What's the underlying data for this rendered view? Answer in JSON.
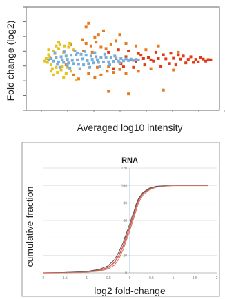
{
  "chart_data": [
    {
      "type": "scatter",
      "title": "",
      "xlabel": "Averaged log10 intensity",
      "ylabel": "Fold change (log2)",
      "xlim": [
        0.4,
        1.95
      ],
      "ylim": [
        -2.0,
        2.1
      ],
      "grid": false,
      "legend": "none",
      "series": [
        {
          "color": "#e23a16",
          "points": [
            [
              1.46,
              0.05
            ],
            [
              1.52,
              0.04
            ],
            [
              1.58,
              0.06
            ],
            [
              1.64,
              0.03
            ],
            [
              1.7,
              0.02
            ],
            [
              1.76,
              0.02
            ],
            [
              1.82,
              0.03
            ],
            [
              1.86,
              0.01
            ],
            [
              1.88,
              0.0
            ],
            [
              1.5,
              0.2
            ],
            [
              1.55,
              -0.15
            ],
            [
              1.62,
              0.18
            ],
            [
              1.68,
              -0.12
            ],
            [
              1.72,
              0.12
            ],
            [
              1.78,
              -0.08
            ],
            [
              1.8,
              0.08
            ],
            [
              1.84,
              -0.05
            ],
            [
              1.44,
              0.3
            ],
            [
              1.48,
              -0.25
            ],
            [
              1.56,
              0.26
            ],
            [
              1.6,
              -0.2
            ],
            [
              1.66,
              0.15
            ],
            [
              1.74,
              -0.1
            ],
            [
              1.42,
              -0.05
            ],
            [
              1.38,
              0.1
            ],
            [
              1.35,
              -0.2
            ],
            [
              1.3,
              0.25
            ],
            [
              1.26,
              -0.3
            ],
            [
              1.22,
              0.35
            ],
            [
              1.18,
              -0.28
            ],
            [
              1.14,
              0.4
            ],
            [
              1.1,
              -0.35
            ],
            [
              1.06,
              0.3
            ],
            [
              1.34,
              0.05
            ],
            [
              1.28,
              -0.08
            ],
            [
              1.2,
              0.12
            ],
            [
              1.16,
              -0.15
            ],
            [
              1.24,
              0.0
            ],
            [
              1.4,
              0.0
            ],
            [
              1.32,
              0.18
            ],
            [
              1.12,
              0.05
            ]
          ]
        },
        {
          "color": "#e67a1e",
          "points": [
            [
              0.88,
              0.65
            ],
            [
              0.92,
              0.55
            ],
            [
              0.96,
              0.7
            ],
            [
              1.0,
              0.5
            ],
            [
              1.04,
              0.45
            ],
            [
              1.08,
              0.6
            ],
            [
              0.9,
              -0.55
            ],
            [
              0.95,
              -0.7
            ],
            [
              1.0,
              -0.6
            ],
            [
              1.05,
              -0.45
            ],
            [
              1.1,
              -0.5
            ],
            [
              1.15,
              -0.38
            ],
            [
              0.85,
              0.8
            ],
            [
              0.82,
              -0.75
            ],
            [
              0.98,
              1.0
            ],
            [
              1.02,
              1.15
            ],
            [
              0.88,
              1.3
            ],
            [
              0.9,
              1.45
            ],
            [
              0.95,
              0.9
            ],
            [
              1.12,
              0.75
            ],
            [
              1.2,
              0.65
            ],
            [
              1.28,
              0.55
            ],
            [
              1.36,
              0.4
            ],
            [
              1.2,
              -0.55
            ],
            [
              1.3,
              -0.45
            ],
            [
              1.4,
              -0.35
            ],
            [
              0.76,
              0.6
            ],
            [
              0.78,
              -0.6
            ],
            [
              0.93,
              0.3
            ],
            [
              1.06,
              -0.25
            ],
            [
              0.86,
              0.35
            ],
            [
              0.97,
              -0.3
            ],
            [
              1.58,
              -0.4
            ],
            [
              1.62,
              0.3
            ],
            [
              1.46,
              0.55
            ],
            [
              1.15,
              1.0
            ],
            [
              1.5,
              -1.2
            ],
            [
              1.06,
              -1.25
            ],
            [
              1.22,
              -1.35
            ],
            [
              0.72,
              -0.2
            ]
          ]
        },
        {
          "color": "#e8c21c",
          "points": [
            [
              0.56,
              0.05
            ],
            [
              0.58,
              0.2
            ],
            [
              0.6,
              -0.2
            ],
            [
              0.62,
              0.35
            ],
            [
              0.64,
              -0.3
            ],
            [
              0.66,
              0.45
            ],
            [
              0.68,
              -0.4
            ],
            [
              0.7,
              0.3
            ],
            [
              0.72,
              -0.55
            ],
            [
              0.74,
              0.5
            ],
            [
              0.76,
              -0.45
            ],
            [
              0.57,
              -0.1
            ],
            [
              0.59,
              0.1
            ],
            [
              0.61,
              -0.35
            ],
            [
              0.63,
              0.25
            ],
            [
              0.65,
              -0.5
            ],
            [
              0.67,
              0.6
            ],
            [
              0.69,
              -0.25
            ],
            [
              0.71,
              0.55
            ],
            [
              0.73,
              -0.3
            ],
            [
              0.55,
              -0.05
            ],
            [
              0.58,
              0.4
            ],
            [
              0.6,
              -0.45
            ],
            [
              0.66,
              0.7
            ],
            [
              0.7,
              -0.7
            ],
            [
              0.75,
              0.65
            ],
            [
              0.8,
              -0.8
            ],
            [
              0.62,
              -0.6
            ],
            [
              0.64,
              0.55
            ],
            [
              0.78,
              0.4
            ]
          ]
        },
        {
          "color": "#7aaed6",
          "points": [
            [
              0.58,
              0.0
            ],
            [
              0.6,
              0.05
            ],
            [
              0.62,
              -0.05
            ],
            [
              0.64,
              0.1
            ],
            [
              0.66,
              -0.08
            ],
            [
              0.68,
              0.12
            ],
            [
              0.7,
              -0.1
            ],
            [
              0.72,
              0.15
            ],
            [
              0.74,
              -0.12
            ],
            [
              0.76,
              0.18
            ],
            [
              0.78,
              -0.15
            ],
            [
              0.8,
              0.2
            ],
            [
              0.82,
              -0.18
            ],
            [
              0.84,
              0.22
            ],
            [
              0.86,
              -0.2
            ],
            [
              0.88,
              0.18
            ],
            [
              0.9,
              -0.15
            ],
            [
              0.92,
              0.15
            ],
            [
              0.94,
              -0.12
            ],
            [
              0.96,
              0.12
            ],
            [
              0.98,
              -0.1
            ],
            [
              1.0,
              0.1
            ],
            [
              1.02,
              -0.08
            ],
            [
              1.04,
              0.1
            ],
            [
              1.06,
              -0.08
            ],
            [
              1.08,
              0.08
            ],
            [
              1.1,
              -0.06
            ],
            [
              1.12,
              0.06
            ],
            [
              1.14,
              -0.05
            ],
            [
              1.16,
              0.05
            ],
            [
              1.18,
              -0.04
            ],
            [
              1.2,
              0.04
            ],
            [
              1.22,
              -0.03
            ],
            [
              1.24,
              0.03
            ],
            [
              1.26,
              -0.02
            ],
            [
              1.28,
              0.02
            ],
            [
              1.3,
              0.0
            ],
            [
              0.63,
              0.28
            ],
            [
              0.67,
              -0.3
            ],
            [
              0.71,
              0.32
            ],
            [
              0.75,
              -0.33
            ],
            [
              0.79,
              0.35
            ],
            [
              0.83,
              -0.35
            ],
            [
              0.87,
              0.33
            ],
            [
              0.91,
              -0.3
            ],
            [
              0.95,
              0.28
            ],
            [
              0.99,
              -0.25
            ],
            [
              1.03,
              0.22
            ],
            [
              1.07,
              -0.2
            ],
            [
              0.69,
              0.0
            ],
            [
              0.73,
              0.02
            ],
            [
              0.77,
              -0.02
            ],
            [
              0.81,
              0.0
            ],
            [
              0.85,
              0.04
            ],
            [
              0.89,
              -0.03
            ],
            [
              0.93,
              0.02
            ],
            [
              0.97,
              0.0
            ],
            [
              0.65,
              -0.18
            ],
            [
              0.73,
              -0.22
            ],
            [
              0.81,
              0.27
            ],
            [
              1.11,
              0.15
            ],
            [
              1.15,
              -0.12
            ]
          ]
        }
      ]
    },
    {
      "type": "line",
      "title": "RNA",
      "xlabel": "log2 fold-change",
      "ylabel": "cumulative fraction",
      "xlim": [
        -2,
        2
      ],
      "ylim": [
        0,
        120
      ],
      "xticks": [
        "-2",
        "-1.5",
        "-1",
        "-0.5",
        "0",
        "0.5",
        "1",
        "1.5",
        "2"
      ],
      "yticks": [
        "0",
        "20",
        "40",
        "60",
        "80",
        "100",
        "120"
      ],
      "grid": true,
      "legend": "none",
      "series": [
        {
          "color": "#e05a48",
          "x": [
            -2,
            -1.5,
            -1,
            -0.7,
            -0.5,
            -0.35,
            -0.25,
            -0.15,
            -0.1,
            -0.05,
            0,
            0.05,
            0.1,
            0.15,
            0.2,
            0.3,
            0.45,
            0.6,
            0.8,
            1,
            1.5,
            1.8
          ],
          "y": [
            0,
            0.2,
            1,
            3,
            6,
            12,
            20,
            31,
            38,
            45,
            52,
            60,
            68,
            76,
            83,
            91,
            96,
            98.5,
            99.5,
            100,
            100,
            100
          ]
        },
        {
          "color": "#5a5a5a",
          "x": [
            -2,
            -1.5,
            -1,
            -0.7,
            -0.5,
            -0.35,
            -0.25,
            -0.15,
            -0.1,
            -0.05,
            0,
            0.05,
            0.1,
            0.15,
            0.2,
            0.3,
            0.45,
            0.6,
            0.8,
            1,
            1.5,
            1.8
          ],
          "y": [
            0,
            0.3,
            1.5,
            4,
            8,
            15,
            24,
            35,
            42,
            49,
            56,
            64,
            71,
            79,
            85,
            92,
            97,
            99,
            99.7,
            100,
            100,
            100
          ]
        },
        {
          "color": "#c97a70",
          "x": [
            -2,
            -1.5,
            -1,
            -0.7,
            -0.5,
            -0.35,
            -0.25,
            -0.15,
            -0.1,
            -0.05,
            0,
            0.05,
            0.1,
            0.15,
            0.2,
            0.3,
            0.45,
            0.6,
            0.8,
            1,
            1.5,
            1.8
          ],
          "y": [
            0,
            0.1,
            0.7,
            2,
            4.5,
            9,
            16,
            27,
            34,
            41,
            48,
            56,
            64,
            72,
            80,
            89,
            95,
            98,
            99.3,
            100,
            100,
            100
          ]
        }
      ]
    }
  ]
}
